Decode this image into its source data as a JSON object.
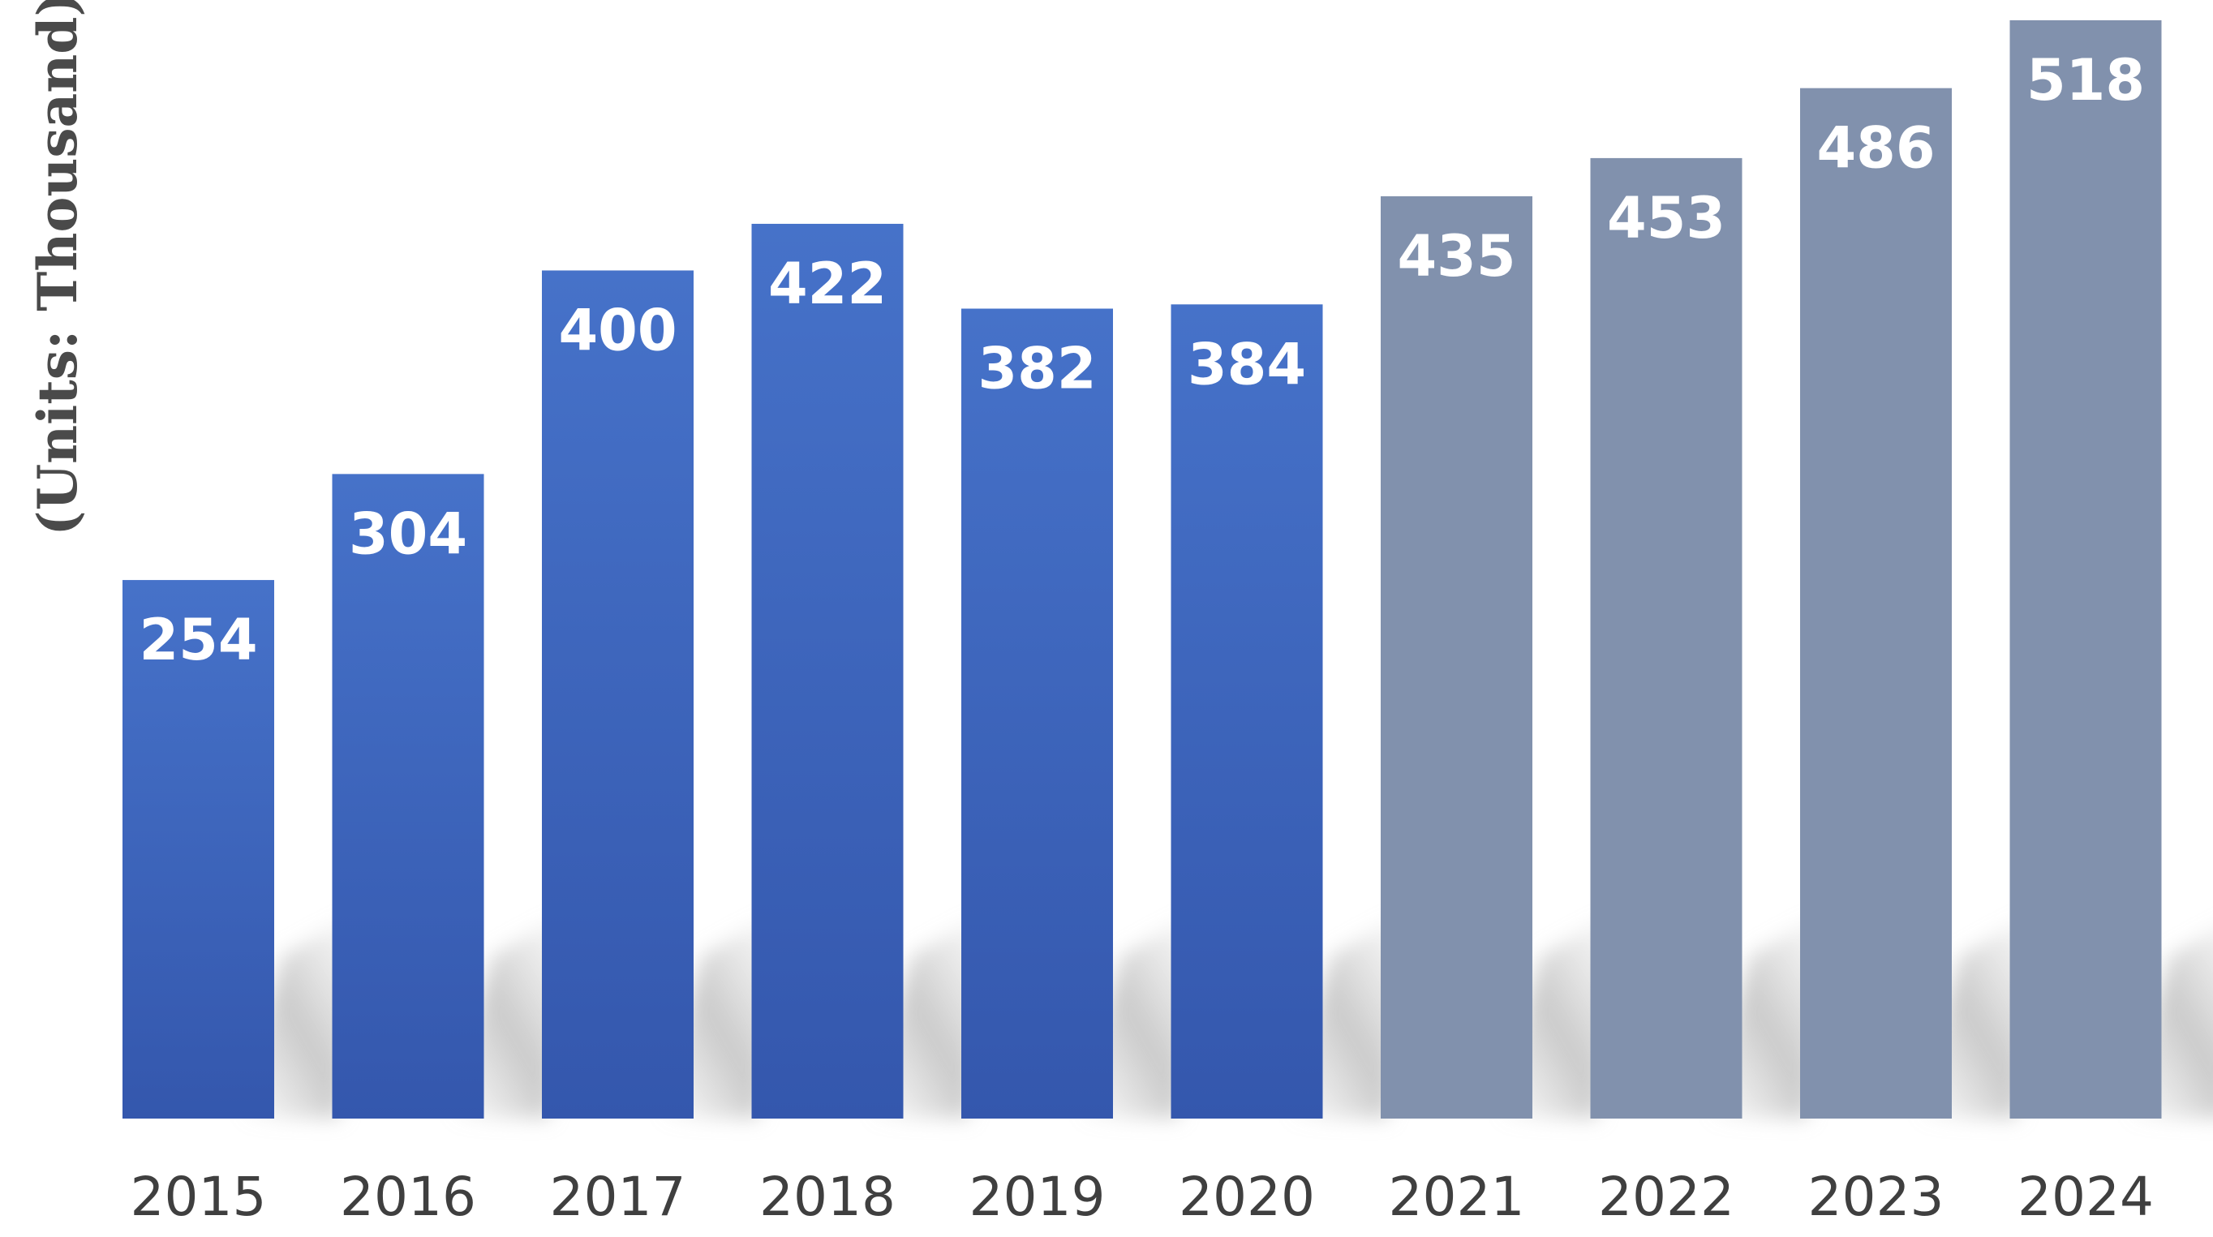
{
  "chart_data": {
    "type": "bar",
    "categories": [
      "2015",
      "2016",
      "2017",
      "2018",
      "2019",
      "2020",
      "2021",
      "2022",
      "2023",
      "2024"
    ],
    "values": [
      254,
      304,
      400,
      422,
      382,
      384,
      435,
      453,
      486,
      518
    ],
    "data_labels": [
      "254",
      "304",
      "400",
      "422",
      "382",
      "384",
      "435",
      "453",
      "486",
      "518"
    ],
    "title": "",
    "xlabel": "",
    "ylabel": "(Units: Thousand)",
    "ylim": [
      0,
      518
    ],
    "grid": false,
    "colors": {
      "actual_top": "#4672c9",
      "actual_bottom": "#3457ad",
      "forecast": "#8191ad"
    },
    "forecast_from_index": 6
  }
}
